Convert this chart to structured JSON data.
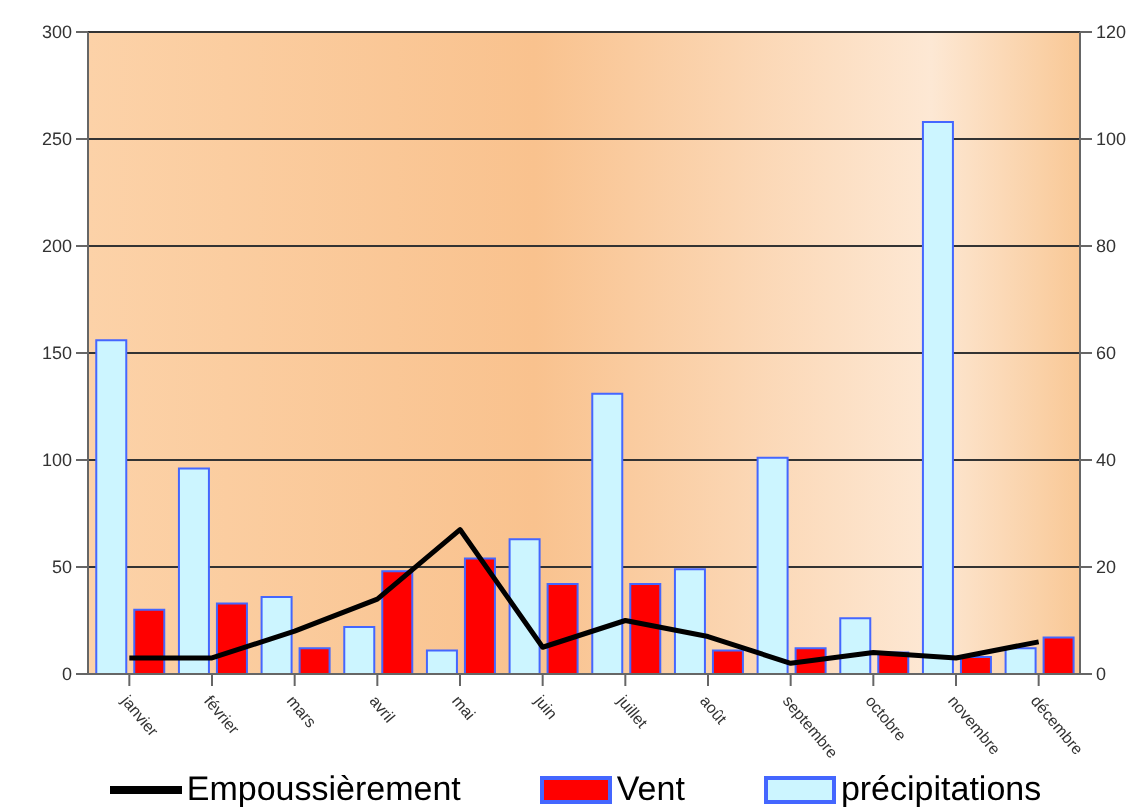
{
  "chart_data": {
    "type": "bar",
    "categories": [
      "janvier",
      "février",
      "mars",
      "avril",
      "mai",
      "juin",
      "juillet",
      "août",
      "septembre",
      "octobre",
      "novembre",
      "décembre"
    ],
    "series": [
      {
        "name": "précipitations",
        "color": "#ccf5ff",
        "values": [
          156,
          96,
          36,
          22,
          11,
          63,
          131,
          49,
          101,
          26,
          258,
          12
        ]
      },
      {
        "name": "Vent",
        "color": "#ff0000",
        "values": [
          30,
          33,
          12,
          48,
          54,
          42,
          42,
          11,
          12,
          10,
          8,
          17
        ]
      },
      {
        "name": "Empoussièrement",
        "type": "line",
        "axis": "y2",
        "color": "#000000",
        "values": [
          3,
          3,
          8,
          14,
          27,
          5,
          10,
          7,
          2,
          4,
          3,
          6
        ]
      }
    ],
    "ylim": [
      0,
      300
    ],
    "yticks": [
      0,
      50,
      100,
      150,
      200,
      250,
      300
    ],
    "y2lim": [
      0,
      120
    ],
    "y2ticks": [
      0,
      20,
      40,
      60,
      80,
      100,
      120
    ],
    "grid": "y",
    "legend": "bottom",
    "marker": "none"
  }
}
